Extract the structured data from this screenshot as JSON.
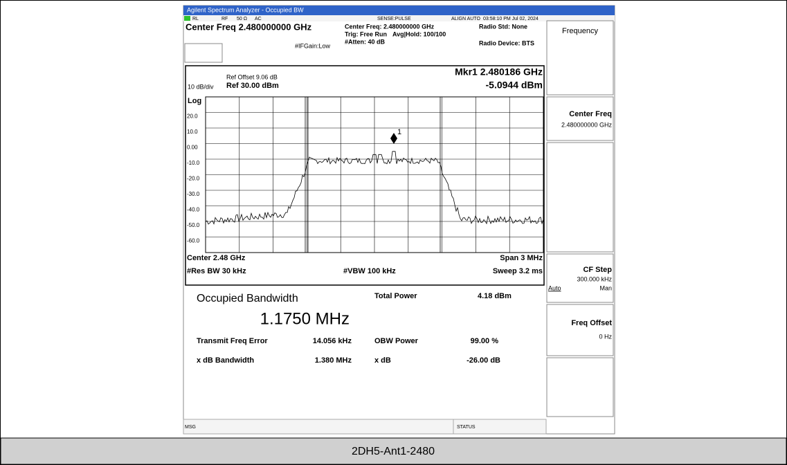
{
  "title_bar": "Agilent Spectrum Analyzer - Occupied BW",
  "status_row": [
    "RL",
    "RF",
    "50 Ω",
    "AC",
    "SENSE:PULSE",
    "ALIGN AUTO",
    "03:58:10 PM Jul 02, 2024"
  ],
  "header": {
    "center_freq": "Center Freq 2.480000000 GHz",
    "center_freq_info": "Center Freq: 2.480000000 GHz",
    "trig": "Trig: Free Run",
    "avg_hold": "Avg|Hold: 100/100",
    "atten": "#Atten: 40 dB",
    "if_gain": "#IFGain:Low",
    "radio_std": "Radio Std: None",
    "radio_device": "Radio Device: BTS"
  },
  "plot": {
    "ref_offset": "Ref Offset 9.06 dB",
    "scale": "10 dB/div",
    "ref_level": "Ref 30.00 dBm",
    "log": "Log",
    "marker_freq": "Mkr1  2.480186 GHz",
    "marker_level": "-5.0944 dBm",
    "marker_label": "1",
    "y_labels": [
      "20.0",
      "10.0",
      "0.00",
      "-10.0",
      "-20.0",
      "-30.0",
      "-40.0",
      "-50.0",
      "-60.0"
    ],
    "center": "Center  2.48 GHz",
    "span": "Span 3 MHz",
    "res_bw": "#Res BW  30 kHz",
    "vbw": "#VBW  100 kHz",
    "sweep": "Sweep  3.2 ms"
  },
  "results": {
    "obw_label": "Occupied Bandwidth",
    "obw_value": "1.1750 MHz",
    "total_power_label": "Total Power",
    "total_power_value": "4.18 dBm",
    "freq_error_label": "Transmit Freq Error",
    "freq_error_value": "14.056 kHz",
    "obw_power_label": "OBW Power",
    "obw_power_value": "99.00 %",
    "xdb_bw_label": "x dB Bandwidth",
    "xdb_bw_value": "1.380 MHz",
    "xdb_label": "x dB",
    "xdb_value": "-26.00 dB"
  },
  "softkeys": {
    "menu": "Frequency",
    "center_freq": "Center Freq",
    "center_freq_value": "2.480000000 GHz",
    "cf_step": "CF Step",
    "cf_step_value": "300.000 kHz",
    "auto": "Auto",
    "man": "Man",
    "freq_offset": "Freq Offset",
    "freq_offset_value": "0 Hz"
  },
  "footer": {
    "msg": "MSG",
    "status": "STATUS"
  },
  "caption": "2DH5-Ant1-2480"
}
